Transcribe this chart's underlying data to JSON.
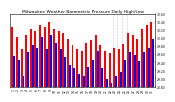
{
  "title": "Milwaukee Weather Barometric Pressure Daily High/Low",
  "highs": [
    30.28,
    30.02,
    29.72,
    30.08,
    30.22,
    30.18,
    30.32,
    30.28,
    30.38,
    30.22,
    30.18,
    30.12,
    29.98,
    29.82,
    29.72,
    29.68,
    29.88,
    29.95,
    30.08,
    29.82,
    29.68,
    29.62,
    29.75,
    29.72,
    29.85,
    30.12,
    30.08,
    29.98,
    30.22,
    30.32,
    30.38
  ],
  "lows": [
    29.55,
    29.45,
    29.05,
    29.65,
    29.82,
    29.75,
    30.02,
    29.72,
    30.08,
    29.88,
    29.72,
    29.52,
    29.32,
    29.25,
    29.12,
    29.05,
    29.28,
    29.45,
    29.68,
    29.25,
    28.98,
    28.88,
    29.05,
    29.15,
    29.45,
    29.65,
    29.58,
    29.42,
    29.65,
    29.75,
    29.98
  ],
  "ylim_min": 28.8,
  "ylim_max": 30.6,
  "ytick_values": [
    28.8,
    29.0,
    29.2,
    29.4,
    29.6,
    29.8,
    30.0,
    30.2,
    30.4,
    30.6
  ],
  "ytick_labels": [
    "28.80",
    "29.00",
    "29.20",
    "29.40",
    "29.60",
    "29.80",
    "30.00",
    "30.20",
    "30.40",
    "30.60"
  ],
  "bar_color_high": "#FF0000",
  "bar_color_low": "#0000FF",
  "bg_color": "#FFFFFF",
  "title_fontsize": 3.2,
  "tick_fontsize": 2.2,
  "bar_width": 0.42,
  "dotted_lines": [
    21.5,
    22.5,
    23.5,
    24.5
  ]
}
